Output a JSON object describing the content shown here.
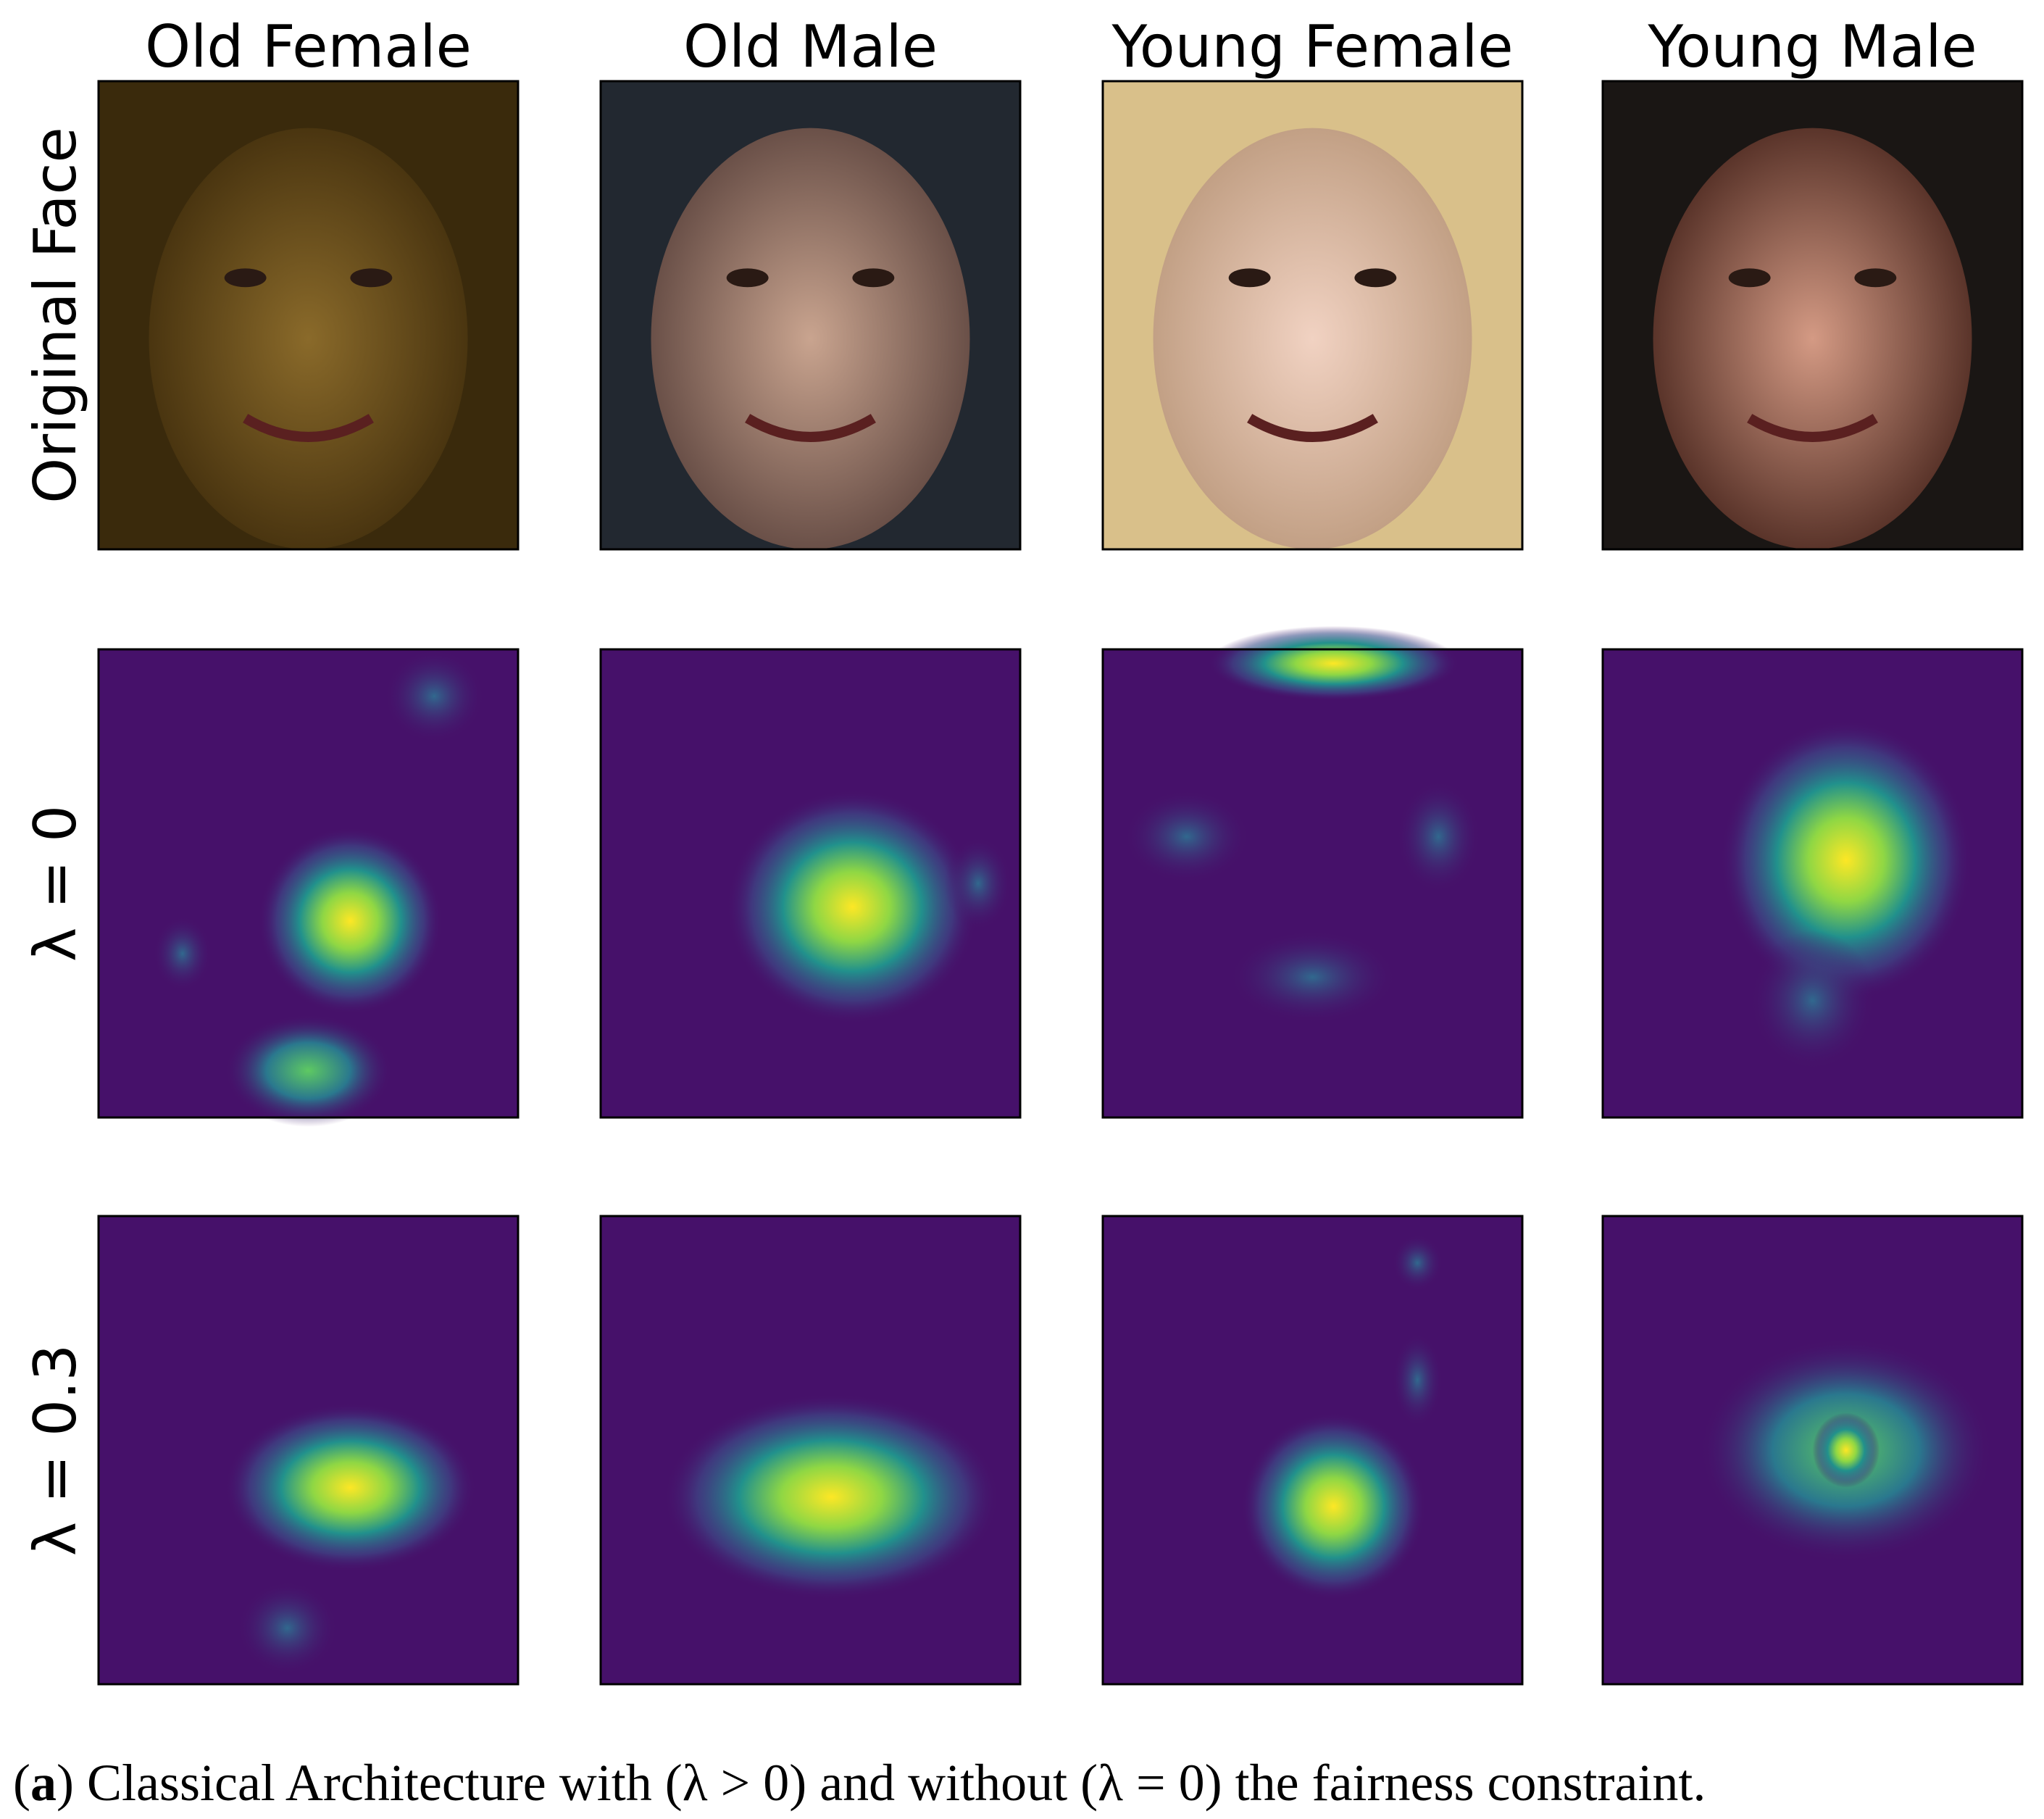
{
  "columns": [
    "Old Female",
    "Old Male",
    "Young Female",
    "Young Male"
  ],
  "rows": [
    "Original Face",
    "λ = 0",
    "λ = 0.3"
  ],
  "caption": [
    {
      "text": "(",
      "bold": false
    },
    {
      "text": "a",
      "bold": true
    },
    {
      "text": ") Classical Architecture with (λ > 0) and without (λ = 0) the fairness constraint.",
      "bold": false
    }
  ]
}
